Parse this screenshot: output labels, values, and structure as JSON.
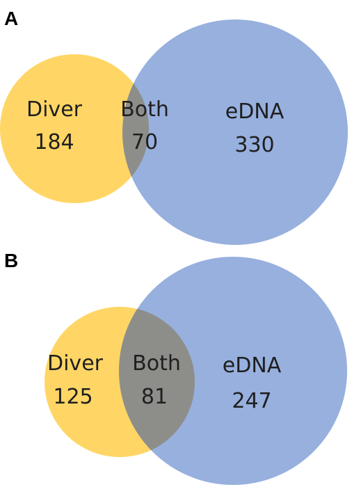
{
  "colors": {
    "diver": "#FFD154",
    "edna": "#8EA9DB",
    "overlap": "#8C8C86",
    "text": "#1f1f1f"
  },
  "panels": [
    {
      "label": "A",
      "diver": {
        "name": "Diver",
        "count": "184"
      },
      "both": {
        "name": "Both",
        "count": "70"
      },
      "edna": {
        "name": "eDNA",
        "count": "330"
      }
    },
    {
      "label": "B",
      "diver": {
        "name": "Diver",
        "count": "125"
      },
      "both": {
        "name": "Both",
        "count": "81"
      },
      "edna": {
        "name": "eDNA",
        "count": "247"
      }
    }
  ]
}
